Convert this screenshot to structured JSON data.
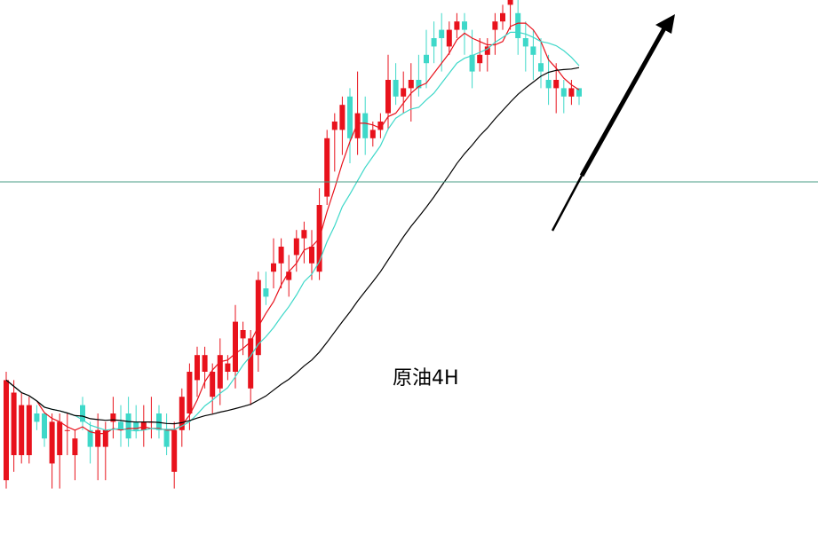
{
  "chart_data": {
    "type": "candlestick",
    "label": "原油4H",
    "colors": {
      "up": "#e8121c",
      "down": "#3ed8c9",
      "ma_fast": "#e8121c",
      "ma_mid": "#3ed8c9",
      "ma_slow": "#000000",
      "hline": "#4a9e86",
      "arrow": "#000000"
    },
    "ma_series": [
      "ma_fast",
      "ma_mid",
      "ma_slow"
    ],
    "horizontal_line": true,
    "trend_arrow": "up",
    "candles": [
      [
        0.04,
        0.28,
        0.02,
        0.3
      ],
      [
        0.1,
        0.25,
        0.06,
        0.28
      ],
      [
        0.1,
        0.22,
        0.08,
        0.25
      ],
      [
        0.1,
        0.22,
        0.08,
        0.24
      ],
      [
        0.2,
        0.18,
        0.16,
        0.22
      ],
      [
        0.2,
        0.14,
        0.12,
        0.2
      ],
      [
        0.08,
        0.18,
        0.02,
        0.2
      ],
      [
        0.1,
        0.18,
        0.02,
        0.2
      ],
      [
        0.16,
        0.16,
        0.1,
        0.2
      ],
      [
        0.1,
        0.14,
        0.04,
        0.16
      ],
      [
        0.22,
        0.18,
        0.16,
        0.24
      ],
      [
        0.16,
        0.12,
        0.08,
        0.18
      ],
      [
        0.12,
        0.16,
        0.04,
        0.2
      ],
      [
        0.12,
        0.16,
        0.04,
        0.18
      ],
      [
        0.18,
        0.2,
        0.14,
        0.24
      ],
      [
        0.18,
        0.16,
        0.12,
        0.22
      ],
      [
        0.2,
        0.14,
        0.12,
        0.24
      ],
      [
        0.18,
        0.16,
        0.14,
        0.22
      ],
      [
        0.16,
        0.18,
        0.12,
        0.22
      ],
      [
        0.18,
        0.18,
        0.14,
        0.24
      ],
      [
        0.2,
        0.16,
        0.14,
        0.22
      ],
      [
        0.16,
        0.12,
        0.1,
        0.2
      ],
      [
        0.06,
        0.16,
        0.02,
        0.18
      ],
      [
        0.16,
        0.24,
        0.12,
        0.26
      ],
      [
        0.2,
        0.3,
        0.16,
        0.32
      ],
      [
        0.28,
        0.34,
        0.24,
        0.36
      ],
      [
        0.3,
        0.34,
        0.26,
        0.36
      ],
      [
        0.24,
        0.3,
        0.2,
        0.32
      ],
      [
        0.26,
        0.34,
        0.22,
        0.38
      ],
      [
        0.3,
        0.32,
        0.28,
        0.34
      ],
      [
        0.3,
        0.42,
        0.26,
        0.46
      ],
      [
        0.38,
        0.4,
        0.34,
        0.42
      ],
      [
        0.26,
        0.38,
        0.22,
        0.4
      ],
      [
        0.34,
        0.52,
        0.3,
        0.54
      ],
      [
        0.5,
        0.48,
        0.46,
        0.54
      ],
      [
        0.54,
        0.56,
        0.5,
        0.62
      ],
      [
        0.56,
        0.6,
        0.5,
        0.62
      ],
      [
        0.52,
        0.54,
        0.48,
        0.58
      ],
      [
        0.58,
        0.62,
        0.54,
        0.64
      ],
      [
        0.62,
        0.64,
        0.56,
        0.66
      ],
      [
        0.56,
        0.6,
        0.52,
        0.64
      ],
      [
        0.54,
        0.7,
        0.52,
        0.74
      ],
      [
        0.72,
        0.86,
        0.7,
        0.88
      ],
      [
        0.88,
        0.9,
        0.78,
        0.92
      ],
      [
        0.88,
        0.94,
        0.82,
        0.96
      ],
      [
        0.96,
        0.86,
        0.8,
        0.98
      ],
      [
        0.86,
        0.92,
        0.82,
        1.02
      ],
      [
        0.92,
        0.86,
        0.82,
        0.96
      ],
      [
        0.86,
        0.88,
        0.84,
        0.9
      ],
      [
        0.88,
        0.9,
        0.86,
        0.92
      ],
      [
        0.92,
        1.0,
        0.88,
        1.06
      ],
      [
        1.0,
        0.96,
        0.94,
        1.04
      ],
      [
        0.96,
        0.98,
        0.92,
        1.02
      ],
      [
        0.98,
        1.0,
        0.9,
        1.04
      ],
      [
        1.0,
        0.98,
        0.96,
        1.06
      ],
      [
        1.06,
        1.04,
        0.98,
        1.12
      ],
      [
        1.1,
        1.08,
        1.04,
        1.14
      ],
      [
        1.12,
        1.1,
        1.02,
        1.16
      ],
      [
        1.08,
        1.12,
        1.06,
        1.14
      ],
      [
        1.12,
        1.14,
        1.1,
        1.16
      ],
      [
        1.14,
        1.12,
        1.06,
        1.16
      ],
      [
        1.06,
        1.02,
        0.98,
        1.12
      ],
      [
        1.04,
        1.06,
        1.02,
        1.1
      ],
      [
        1.06,
        1.08,
        1.02,
        1.1
      ],
      [
        1.12,
        1.14,
        1.06,
        1.16
      ],
      [
        1.14,
        1.16,
        1.12,
        1.18
      ],
      [
        1.18,
        1.2,
        1.12,
        1.22
      ],
      [
        1.16,
        1.1,
        1.06,
        1.2
      ],
      [
        1.1,
        1.08,
        1.02,
        1.14
      ],
      [
        1.08,
        1.06,
        1.0,
        1.12
      ],
      [
        1.04,
        1.02,
        0.98,
        1.1
      ],
      [
        1.0,
        0.98,
        0.94,
        1.06
      ],
      [
        0.98,
        1.0,
        0.92,
        1.04
      ],
      [
        0.98,
        0.96,
        0.92,
        1.0
      ],
      [
        0.96,
        0.98,
        0.94,
        1.0
      ],
      [
        0.98,
        0.96,
        0.94,
        0.98
      ]
    ]
  }
}
